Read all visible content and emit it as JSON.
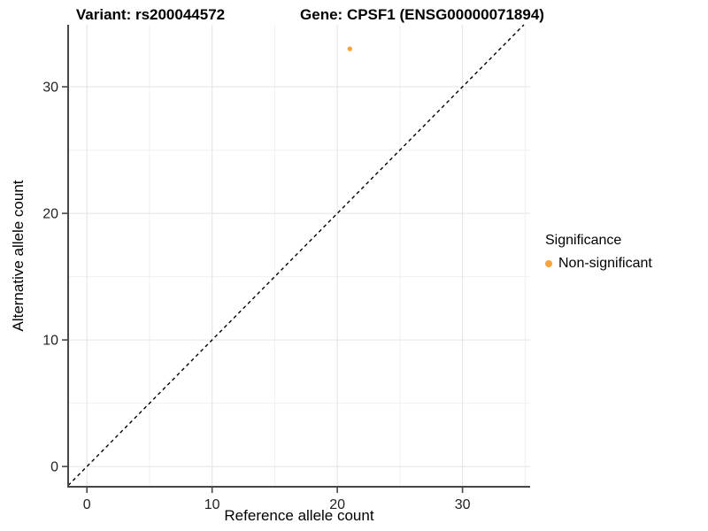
{
  "chart_data": {
    "type": "scatter",
    "title_left": "Variant: rs200044572",
    "title_right": "Gene: CPSF1 (ENSG00000071894)",
    "xlabel": "Reference allele count",
    "ylabel": "Alternative allele count",
    "xlim": [
      -1.5,
      35.4
    ],
    "ylim": [
      -1.6,
      34.9
    ],
    "x_major_ticks": [
      0,
      10,
      20,
      30
    ],
    "y_major_ticks": [
      0,
      10,
      20,
      30
    ],
    "x_minor_ticks": [
      5,
      15,
      25,
      35
    ],
    "y_minor_ticks": [
      5,
      15,
      25
    ],
    "grid": "major and minor gridlines, light gray on white",
    "points": [
      {
        "x": 21,
        "y": 33,
        "series": "Non-significant"
      }
    ],
    "reference_line": {
      "kind": "identity y=x",
      "style": "dashed",
      "color": "#000000"
    },
    "legend": {
      "title": "Significance",
      "position": "right",
      "items": [
        {
          "label": "Non-significant",
          "color": "#FAA43A"
        }
      ]
    }
  },
  "colors": {
    "point": "#FAA43A",
    "grid_major": "#E3E3E3",
    "grid_minor": "#F0F0F0",
    "axis": "#474747",
    "tick_label": "#222222",
    "background": "#FFFFFF"
  }
}
